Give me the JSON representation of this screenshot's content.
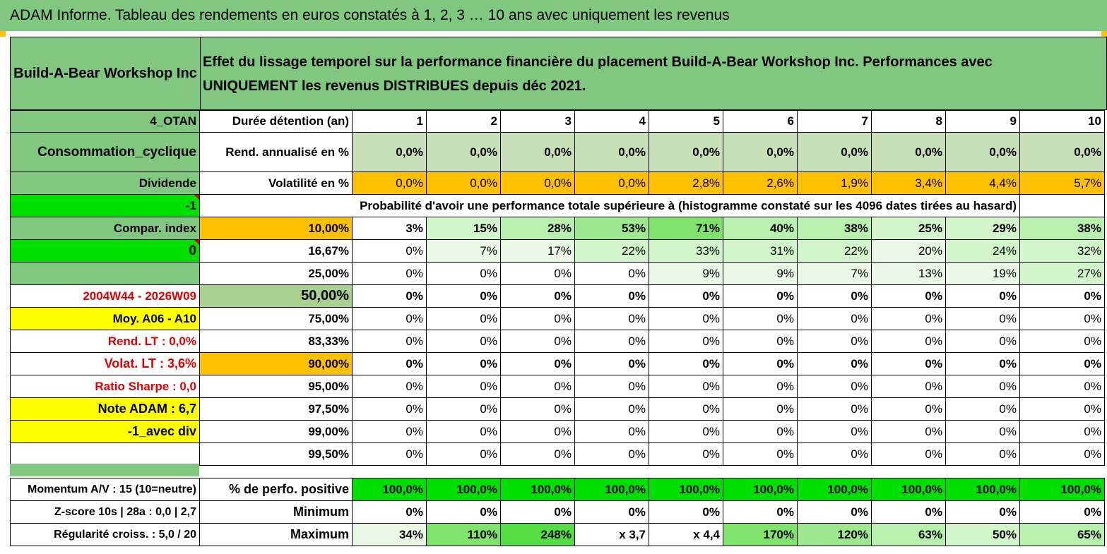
{
  "title": "ADAM Informe. Tableau des rendements en euros constatés à 1, 2, 3 … 10 ans avec uniquement les revenus",
  "header": {
    "company": "Build-A-Bear Workshop Inc",
    "description_line1": "Effet du lissage temporel sur la performance financière du placement Build-A-Bear Workshop Inc. Performances avec",
    "description_line2": "UNIQUEMENT les revenus DISTRIBUES depuis déc 2021."
  },
  "left_labels": {
    "code": "4_OTAN",
    "sector": "Consommation_cyclique",
    "type": "Dividende",
    "minus_one": "-1",
    "compar_index": "Compar. index",
    "zero": "0",
    "period": "2004W44 - 2026W09",
    "moy": "Moy. A06 - A10",
    "rend_lt": "Rend. LT :   0,0%",
    "volat_lt": "Volat. LT :   3,6%",
    "sharpe": "Ratio Sharpe :    0,0",
    "note": "Note ADAM : 6,7",
    "avec_div": "-1_avec div"
  },
  "duration": {
    "label": "Durée détention (an)",
    "years": [
      "1",
      "2",
      "3",
      "4",
      "5",
      "6",
      "7",
      "8",
      "9",
      "10"
    ]
  },
  "rend": {
    "label": "Rend. annualisé en %",
    "values": [
      "0,0%",
      "0,0%",
      "0,0%",
      "0,0%",
      "0,0%",
      "0,0%",
      "0,0%",
      "0,0%",
      "0,0%",
      "0,0%"
    ]
  },
  "volat": {
    "label": "Volatilité en %",
    "values": [
      "0,0%",
      "0,0%",
      "0,0%",
      "0,0%",
      "2,8%",
      "2,6%",
      "1,9%",
      "3,4%",
      "4,4%",
      "5,7%"
    ]
  },
  "probability_title": "Probabilité d'avoir une performance totale supérieure à (histogramme constaté sur les 4096 dates tirées au hasard)",
  "prob_rows": [
    {
      "threshold": "10,00%",
      "values": [
        "3%",
        "15%",
        "28%",
        "53%",
        "71%",
        "40%",
        "38%",
        "25%",
        "29%",
        "38%"
      ]
    },
    {
      "threshold": "16,67%",
      "values": [
        "0%",
        "7%",
        "17%",
        "22%",
        "33%",
        "31%",
        "22%",
        "20%",
        "24%",
        "32%"
      ]
    },
    {
      "threshold": "25,00%",
      "values": [
        "0%",
        "0%",
        "0%",
        "0%",
        "9%",
        "9%",
        "7%",
        "13%",
        "19%",
        "27%"
      ]
    },
    {
      "threshold": "50,00%",
      "values": [
        "0%",
        "0%",
        "0%",
        "0%",
        "0%",
        "0%",
        "0%",
        "0%",
        "0%",
        "0%"
      ]
    },
    {
      "threshold": "75,00%",
      "values": [
        "0%",
        "0%",
        "0%",
        "0%",
        "0%",
        "0%",
        "0%",
        "0%",
        "0%",
        "0%"
      ]
    },
    {
      "threshold": "83,33%",
      "values": [
        "0%",
        "0%",
        "0%",
        "0%",
        "0%",
        "0%",
        "0%",
        "0%",
        "0%",
        "0%"
      ]
    },
    {
      "threshold": "90,00%",
      "values": [
        "0%",
        "0%",
        "0%",
        "0%",
        "0%",
        "0%",
        "0%",
        "0%",
        "0%",
        "0%"
      ]
    },
    {
      "threshold": "95,00%",
      "values": [
        "0%",
        "0%",
        "0%",
        "0%",
        "0%",
        "0%",
        "0%",
        "0%",
        "0%",
        "0%"
      ]
    },
    {
      "threshold": "97,50%",
      "values": [
        "0%",
        "0%",
        "0%",
        "0%",
        "0%",
        "0%",
        "0%",
        "0%",
        "0%",
        "0%"
      ]
    },
    {
      "threshold": "99,00%",
      "values": [
        "0%",
        "0%",
        "0%",
        "0%",
        "0%",
        "0%",
        "0%",
        "0%",
        "0%",
        "0%"
      ]
    },
    {
      "threshold": "99,50%",
      "values": [
        "0%",
        "0%",
        "0%",
        "0%",
        "0%",
        "0%",
        "0%",
        "0%",
        "0%",
        "0%"
      ]
    }
  ],
  "bottom": {
    "momentum": "Momentum A/V : 15 (10=neutre)",
    "zscore": "Z-score 10s | 28a : 0,0 | 2,7",
    "regularite": "Régularité croiss. : 5,0 / 20",
    "positive_label": "% de perfo. positive",
    "positive_values": [
      "100,0%",
      "100,0%",
      "100,0%",
      "100,0%",
      "100,0%",
      "100,0%",
      "100,0%",
      "100,0%",
      "100,0%",
      "100,0%"
    ],
    "minimum_label": "Minimum",
    "minimum_values": [
      "0%",
      "0%",
      "0%",
      "0%",
      "0%",
      "0%",
      "0%",
      "0%",
      "0%",
      "0%"
    ],
    "maximum_label": "Maximum",
    "maximum_values": [
      "34%",
      "110%",
      "248%",
      "x 3,7",
      "x 4,4",
      "170%",
      "120%",
      "63%",
      "50%",
      "65%"
    ]
  },
  "colors": {
    "header_green": "#80c87f",
    "orange": "#ffc000",
    "bright_green": "#00e000",
    "yellow": "#ffff00",
    "red_text": "#e00000"
  }
}
